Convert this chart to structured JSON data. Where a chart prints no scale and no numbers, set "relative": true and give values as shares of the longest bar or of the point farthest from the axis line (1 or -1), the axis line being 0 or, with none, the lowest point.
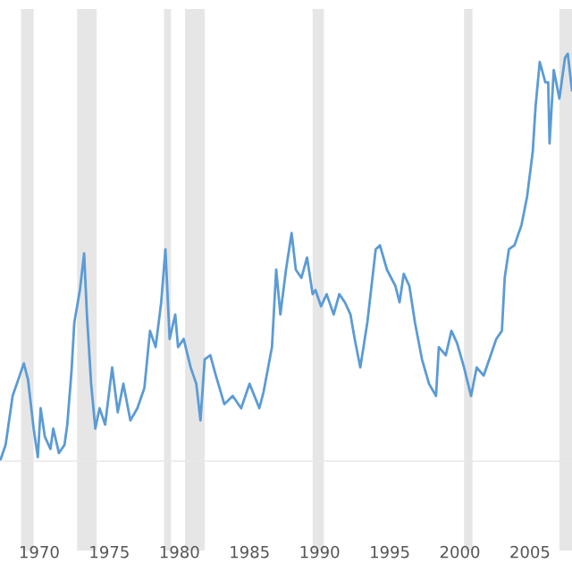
{
  "chart_data": {
    "type": "line",
    "relative": true,
    "x": [
      1967.2,
      1967.6,
      1968.1,
      1968.5,
      1968.9,
      1969.2,
      1969.6,
      1969.9,
      1970.1,
      1970.4,
      1970.8,
      1971.0,
      1971.4,
      1971.8,
      1972.0,
      1972.3,
      1972.5,
      1972.9,
      1973.2,
      1973.4,
      1973.7,
      1974.0,
      1974.3,
      1974.7,
      1975.2,
      1975.6,
      1976.0,
      1976.5,
      1977.0,
      1977.5,
      1977.9,
      1978.3,
      1978.7,
      1979.0,
      1979.3,
      1979.7,
      1979.9,
      1980.3,
      1980.8,
      1981.2,
      1981.5,
      1981.8,
      1982.2,
      1982.6,
      1983.2,
      1983.8,
      1984.4,
      1985.0,
      1985.7,
      1986.0,
      1986.6,
      1986.9,
      1987.2,
      1987.6,
      1988.0,
      1988.3,
      1988.7,
      1989.1,
      1989.5,
      1989.7,
      1990.1,
      1990.5,
      1991.0,
      1991.4,
      1991.8,
      1992.2,
      1992.5,
      1992.9,
      1993.4,
      1994.0,
      1994.3,
      1994.8,
      1995.4,
      1995.7,
      1996.0,
      1996.4,
      1996.8,
      1997.3,
      1997.8,
      1998.3,
      1998.5,
      1999.0,
      1999.4,
      1999.8,
      2000.3,
      2000.8,
      2001.2,
      2001.7,
      2002.2,
      2002.6,
      2003.0,
      2003.2,
      2003.5,
      2003.9,
      2004.4,
      2004.8,
      2005.2,
      2005.4,
      2005.7,
      2006.1,
      2006.3,
      2006.4,
      2006.7,
      2007.1,
      2007.5,
      2007.7,
      2008.0
    ],
    "series": [
      {
        "color": "#5b9bd5",
        "values": [
          0.0,
          0.04,
          0.16,
          0.2,
          0.24,
          0.2,
          0.08,
          0.01,
          0.13,
          0.06,
          0.03,
          0.08,
          0.02,
          0.04,
          0.09,
          0.22,
          0.34,
          0.42,
          0.51,
          0.36,
          0.19,
          0.08,
          0.13,
          0.09,
          0.23,
          0.12,
          0.19,
          0.1,
          0.13,
          0.18,
          0.32,
          0.28,
          0.39,
          0.52,
          0.3,
          0.36,
          0.28,
          0.3,
          0.23,
          0.19,
          0.1,
          0.25,
          0.26,
          0.21,
          0.14,
          0.16,
          0.13,
          0.19,
          0.13,
          0.17,
          0.28,
          0.47,
          0.36,
          0.47,
          0.56,
          0.47,
          0.45,
          0.5,
          0.41,
          0.42,
          0.38,
          0.41,
          0.36,
          0.41,
          0.39,
          0.36,
          0.3,
          0.23,
          0.34,
          0.52,
          0.53,
          0.47,
          0.43,
          0.39,
          0.46,
          0.43,
          0.34,
          0.25,
          0.19,
          0.16,
          0.28,
          0.26,
          0.32,
          0.29,
          0.23,
          0.16,
          0.23,
          0.21,
          0.26,
          0.3,
          0.32,
          0.45,
          0.52,
          0.53,
          0.58,
          0.65,
          0.76,
          0.87,
          0.98,
          0.93,
          0.93,
          0.78,
          0.96,
          0.89,
          0.99,
          1.0,
          0.91
        ]
      }
    ],
    "xlim": [
      1967.2,
      2008.0
    ],
    "xticks": [
      1970,
      1975,
      1980,
      1985,
      1990,
      1995,
      2000,
      2005
    ],
    "bands": [
      {
        "axis": "x",
        "from": 1968.7,
        "to": 1969.6,
        "color": "#e6e6e6"
      },
      {
        "axis": "x",
        "from": 1972.7,
        "to": 1974.1,
        "color": "#e6e6e6"
      },
      {
        "axis": "x",
        "from": 1978.9,
        "to": 1979.4,
        "color": "#e6e6e6"
      },
      {
        "axis": "x",
        "from": 1980.4,
        "to": 1981.8,
        "color": "#e6e6e6"
      },
      {
        "axis": "x",
        "from": 1989.5,
        "to": 1990.3,
        "color": "#e6e6e6"
      },
      {
        "axis": "x",
        "from": 2000.3,
        "to": 2000.9,
        "color": "#e6e6e6"
      },
      {
        "axis": "x",
        "from": 2007.1,
        "to": 2008.0,
        "color": "#e6e6e6"
      }
    ],
    "line_style": "solid",
    "marker": "none",
    "grid": false
  }
}
